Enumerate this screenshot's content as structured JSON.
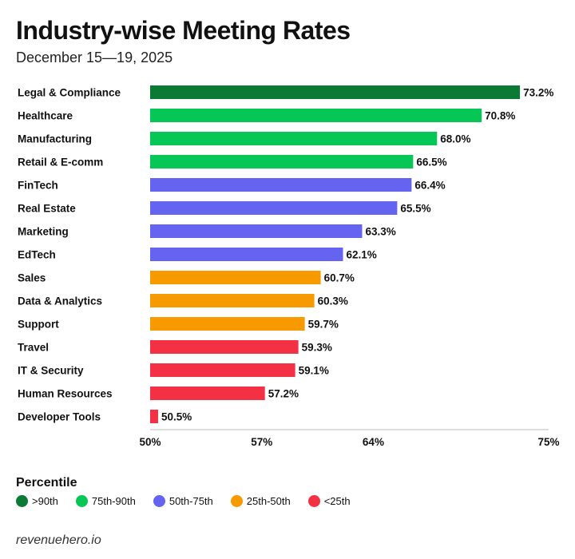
{
  "title": "Industry-wise Meeting Rates",
  "subtitle": "December 15—19, 2025",
  "legend": {
    "title": "Percentile",
    "items": [
      {
        "label": ">90th",
        "color": "#0b7a34"
      },
      {
        "label": "75th-90th",
        "color": "#06c755"
      },
      {
        "label": "50th-75th",
        "color": "#6464f0"
      },
      {
        "label": "25th-50th",
        "color": "#f79a00"
      },
      {
        "label": "<25th",
        "color": "#f43045"
      }
    ]
  },
  "footer": "revenuehero.io",
  "chart_data": {
    "type": "bar",
    "orientation": "horizontal",
    "categories": [
      "Legal & Compliance",
      "Healthcare",
      "Manufacturing",
      "Retail & E-comm",
      "FinTech",
      "Real Estate",
      "Marketing",
      "EdTech",
      "Sales",
      "Data & Analytics",
      "Support",
      "Travel",
      "IT & Security",
      "Human Resources",
      "Developer Tools"
    ],
    "values": [
      73.2,
      70.8,
      68.0,
      66.5,
      66.4,
      65.5,
      63.3,
      62.1,
      60.7,
      60.3,
      59.7,
      59.3,
      59.1,
      57.2,
      50.5
    ],
    "value_labels": [
      "73.2%",
      "70.8%",
      "68.0%",
      "66.5%",
      "66.4%",
      "65.5%",
      "63.3%",
      "62.1%",
      "60.7%",
      "60.3%",
      "59.7%",
      "59.3%",
      "59.1%",
      "57.2%",
      "50.5%"
    ],
    "percentile_group": [
      ">90th",
      "75th-90th",
      "75th-90th",
      "75th-90th",
      "50th-75th",
      "50th-75th",
      "50th-75th",
      "50th-75th",
      "25th-50th",
      "25th-50th",
      "25th-50th",
      "<25th",
      "<25th",
      "<25th",
      "<25th"
    ],
    "highlight_category": "Legal & Compliance",
    "highlight_color": "#0b7a34",
    "xlim": [
      50,
      75
    ],
    "xticks": [
      50,
      57,
      64,
      75
    ],
    "xtick_labels": [
      "50%",
      "57%",
      "64%",
      "75%"
    ],
    "xlabel": "",
    "ylabel": ""
  }
}
